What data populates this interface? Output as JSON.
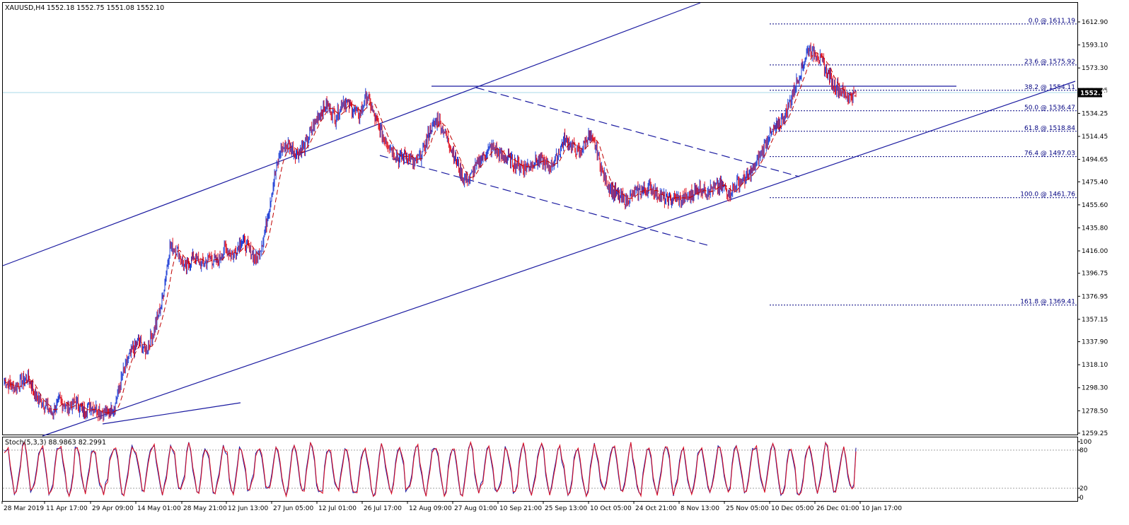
{
  "header": {
    "symbol": "XAUUSD,H4",
    "ohlc": "1552.18 1552.75 1551.08 1552.10"
  },
  "colors": {
    "up_candle": "#1f3fd6",
    "down_candle": "#e01020",
    "moving_average": "#c00000",
    "trend_line": "#1a1aa0",
    "fib_line": "#000080",
    "current_price_line": "#a8d8e8",
    "stoch_main": "#1a1aa0",
    "stoch_signal": "#e01020"
  },
  "price_panel": {
    "current_price": "1552.10"
  },
  "stoch_panel": {
    "label": "Stoch(5,3,3) 88.9863 82.2991",
    "levels": [
      "100",
      "80",
      "20",
      "0"
    ]
  },
  "chart_data": {
    "type": "candlestick",
    "symbol": "XAUUSD",
    "timeframe": "H4",
    "ylim": [
      1259.25,
      1622.7
    ],
    "y_ticks": [
      "1612.90",
      "1593.10",
      "1573.30",
      "1554.05",
      "1534.25",
      "1514.45",
      "1494.65",
      "1475.40",
      "1455.60",
      "1435.80",
      "1416.00",
      "1396.75",
      "1376.95",
      "1357.15",
      "1337.90",
      "1318.10",
      "1298.30",
      "1278.50",
      "1259.25"
    ],
    "x_ticks": [
      "28 Mar 2019",
      "11 Apr 17:00",
      "29 Apr 09:00",
      "14 May 01:00",
      "28 May 21:00",
      "12 Jun 13:00",
      "27 Jun 05:00",
      "12 Jul 01:00",
      "26 Jul 17:00",
      "12 Aug 09:00",
      "27 Aug 01:00",
      "10 Sep 21:00",
      "25 Sep 13:00",
      "10 Oct 05:00",
      "24 Oct 21:00",
      "8 Nov 13:00",
      "25 Nov 05:00",
      "10 Dec 05:00",
      "26 Dec 01:00",
      "10 Jan 17:00"
    ],
    "price_path": [
      [
        0,
        1305
      ],
      [
        2,
        1298
      ],
      [
        4,
        1302
      ],
      [
        6,
        1308
      ],
      [
        8,
        1290
      ],
      [
        10,
        1285
      ],
      [
        12,
        1276
      ],
      [
        14,
        1288
      ],
      [
        16,
        1280
      ],
      [
        18,
        1286
      ],
      [
        20,
        1278
      ],
      [
        22,
        1283
      ],
      [
        24,
        1279
      ],
      [
        26,
        1276
      ],
      [
        28,
        1282
      ],
      [
        30,
        1310
      ],
      [
        32,
        1328
      ],
      [
        34,
        1338
      ],
      [
        36,
        1330
      ],
      [
        38,
        1348
      ],
      [
        40,
        1372
      ],
      [
        42,
        1420
      ],
      [
        44,
        1416
      ],
      [
        46,
        1400
      ],
      [
        48,
        1412
      ],
      [
        50,
        1404
      ],
      [
        52,
        1410
      ],
      [
        54,
        1406
      ],
      [
        56,
        1418
      ],
      [
        58,
        1412
      ],
      [
        60,
        1425
      ],
      [
        62,
        1418
      ],
      [
        64,
        1408
      ],
      [
        66,
        1430
      ],
      [
        68,
        1470
      ],
      [
        70,
        1502
      ],
      [
        72,
        1508
      ],
      [
        74,
        1500
      ],
      [
        76,
        1505
      ],
      [
        78,
        1520
      ],
      [
        80,
        1535
      ],
      [
        82,
        1542
      ],
      [
        84,
        1530
      ],
      [
        86,
        1545
      ],
      [
        88,
        1540
      ],
      [
        90,
        1532
      ],
      [
        92,
        1550
      ],
      [
        94,
        1530
      ],
      [
        96,
        1515
      ],
      [
        98,
        1505
      ],
      [
        100,
        1495
      ],
      [
        102,
        1500
      ],
      [
        104,
        1490
      ],
      [
        106,
        1500
      ],
      [
        108,
        1520
      ],
      [
        110,
        1530
      ],
      [
        112,
        1515
      ],
      [
        114,
        1500
      ],
      [
        116,
        1480
      ],
      [
        118,
        1478
      ],
      [
        120,
        1490
      ],
      [
        122,
        1500
      ],
      [
        124,
        1505
      ],
      [
        126,
        1498
      ],
      [
        128,
        1495
      ],
      [
        130,
        1490
      ],
      [
        132,
        1488
      ],
      [
        134,
        1492
      ],
      [
        136,
        1494
      ],
      [
        138,
        1488
      ],
      [
        140,
        1495
      ],
      [
        142,
        1512
      ],
      [
        144,
        1506
      ],
      [
        146,
        1500
      ],
      [
        148,
        1515
      ],
      [
        150,
        1505
      ],
      [
        152,
        1480
      ],
      [
        154,
        1468
      ],
      [
        156,
        1462
      ],
      [
        158,
        1460
      ],
      [
        160,
        1466
      ],
      [
        162,
        1468
      ],
      [
        164,
        1470
      ],
      [
        166,
        1464
      ],
      [
        168,
        1460
      ],
      [
        170,
        1462
      ],
      [
        172,
        1460
      ],
      [
        174,
        1464
      ],
      [
        176,
        1470
      ],
      [
        178,
        1468
      ],
      [
        180,
        1470
      ],
      [
        182,
        1472
      ],
      [
        184,
        1466
      ],
      [
        186,
        1475
      ],
      [
        188,
        1478
      ],
      [
        190,
        1486
      ],
      [
        192,
        1500
      ],
      [
        194,
        1516
      ],
      [
        196,
        1522
      ],
      [
        198,
        1532
      ],
      [
        200,
        1552
      ],
      [
        202,
        1570
      ],
      [
        204,
        1590
      ],
      [
        206,
        1585
      ],
      [
        208,
        1575
      ],
      [
        210,
        1560
      ],
      [
        212,
        1555
      ],
      [
        214,
        1548
      ],
      [
        216,
        1552
      ]
    ],
    "fib_levels": [
      {
        "label": "0.0 @ 1611.19",
        "value": 1611.19
      },
      {
        "label": "23.6 @ 1575.92",
        "value": 1575.92
      },
      {
        "label": "38.2 @ 1554.11",
        "value": 1554.11
      },
      {
        "label": "50.0 @ 1536.47",
        "value": 1536.47
      },
      {
        "label": "61.8 @ 1518.84",
        "value": 1518.84
      },
      {
        "label": "76.4 @ 1497.03",
        "value": 1497.03
      },
      {
        "label": "100.0 @ 1461.76",
        "value": 1461.76
      },
      {
        "label": "161.8 @ 1369.41",
        "value": 1369.41
      }
    ],
    "stochastic": {
      "main": 88.9863,
      "signal": 82.2991,
      "ylim": [
        0,
        100
      ],
      "levels": [
        20,
        80
      ]
    }
  }
}
